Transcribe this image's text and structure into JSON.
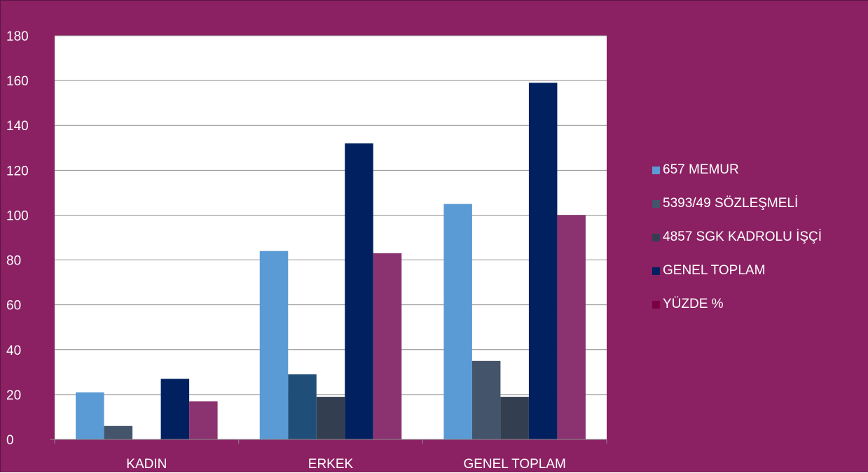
{
  "chart_data": {
    "type": "bar",
    "title": "",
    "xlabel": "",
    "ylabel": "",
    "categories": [
      "KADIN",
      "ERKEK",
      "GENEL TOPLAM"
    ],
    "ylim": [
      0,
      180
    ],
    "yticks": [
      0,
      20,
      40,
      60,
      80,
      100,
      120,
      140,
      160,
      180
    ],
    "grid": true,
    "legend_position": "right",
    "series": [
      {
        "name": "657 MEMUR",
        "values": [
          21,
          84,
          105
        ],
        "color": "#5B9BD5"
      },
      {
        "name": "5393/49 SÖZLEŞMELİ",
        "values": [
          6,
          29,
          35
        ],
        "color": "#44546A",
        "point_colors": [
          "#44546A",
          "#1F4E79",
          "#44546A"
        ]
      },
      {
        "name": "4857 SGK KADROLU İŞÇİ",
        "values": [
          0,
          19,
          19
        ],
        "color": "#333F50"
      },
      {
        "name": "GENEL TOPLAM",
        "values": [
          27,
          132,
          159
        ],
        "color": "#002060"
      },
      {
        "name": "YÜZDE %",
        "values": [
          17,
          83,
          100
        ],
        "color": "#8B3270",
        "legend_color": "#7A0042"
      }
    ]
  },
  "colors": {
    "background": "#8B2062",
    "plot_area": "#ffffff",
    "gridline": "#8c8c8c",
    "text": "#ffffff"
  }
}
